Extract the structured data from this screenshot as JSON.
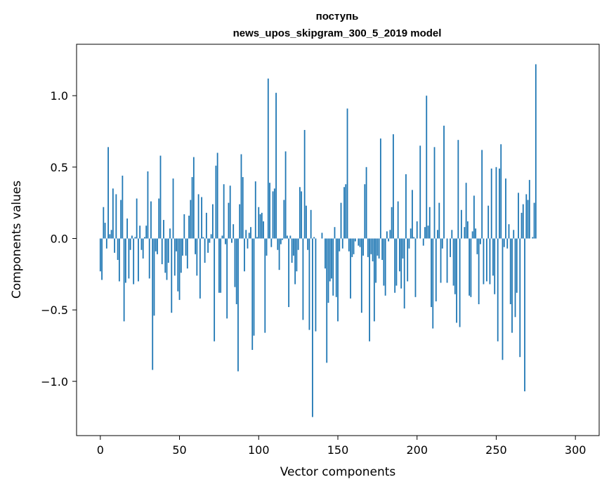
{
  "chart_data": {
    "type": "bar",
    "title_lines": [
      "поступь",
      "news_upos_skipgram_300_5_2019 model"
    ],
    "xlabel": "Vector components",
    "ylabel": "Components values",
    "xlim": [
      -15,
      315
    ],
    "ylim": [
      -1.38,
      1.36
    ],
    "xticks": [
      0,
      50,
      100,
      150,
      200,
      250,
      300
    ],
    "yticks": [
      -1.0,
      -0.5,
      0.0,
      0.5,
      1.0
    ],
    "ytick_labels": [
      "−1.0",
      "−0.5",
      "0.0",
      "0.5",
      "1.0"
    ],
    "bar_color": "#1f77b4",
    "grid": false,
    "legend": "none",
    "values": [
      -0.23,
      -0.29,
      0.22,
      0.11,
      -0.07,
      0.64,
      0.03,
      0.06,
      0.35,
      -0.1,
      0.31,
      -0.15,
      -0.3,
      0.27,
      0.44,
      -0.58,
      -0.31,
      0.14,
      -0.28,
      -0.08,
      0.02,
      -0.32,
      0.01,
      0.28,
      -0.3,
      0.09,
      -0.08,
      -0.14,
      0.01,
      0.09,
      0.47,
      -0.28,
      0.26,
      -0.92,
      -0.54,
      -0.09,
      -0.11,
      0.28,
      0.58,
      -0.18,
      0.13,
      -0.24,
      -0.29,
      -0.17,
      0.07,
      -0.52,
      0.42,
      -0.26,
      -0.09,
      -0.37,
      -0.43,
      -0.24,
      -0.12,
      0.17,
      -0.12,
      -0.21,
      0.16,
      0.27,
      0.43,
      0.57,
      -0.11,
      -0.26,
      0.31,
      -0.42,
      0.29,
      0.01,
      -0.17,
      0.18,
      -0.1,
      -0.03,
      0.03,
      0.24,
      -0.72,
      0.51,
      0.6,
      -0.38,
      -0.38,
      0.02,
      0.38,
      -0.04,
      -0.56,
      0.25,
      0.37,
      -0.03,
      0.1,
      -0.34,
      -0.46,
      -0.93,
      0.24,
      0.59,
      0.43,
      -0.23,
      0.06,
      -0.07,
      0.04,
      0.08,
      -0.78,
      -0.68,
      0.4,
      0.01,
      0.22,
      0.17,
      0.18,
      0.12,
      -0.66,
      -0.12,
      1.12,
      0.39,
      -0.06,
      0.33,
      0.35,
      1.02,
      -0.08,
      -0.22,
      -0.04,
      -0.01,
      0.27,
      0.61,
      0.02,
      -0.48,
      0.02,
      -0.17,
      -0.12,
      -0.32,
      -0.23,
      -0.08,
      0.36,
      0.33,
      -0.57,
      0.76,
      0.23,
      -0.08,
      -0.64,
      0.2,
      -1.25,
      0.01,
      -0.65,
      0.0,
      0.0,
      0.0,
      0.04,
      0.0,
      -0.21,
      -0.87,
      -0.45,
      -0.3,
      -0.28,
      -0.4,
      0.08,
      -0.41,
      -0.58,
      -0.09,
      0.25,
      -0.07,
      0.36,
      0.38,
      0.91,
      -0.09,
      -0.42,
      -0.13,
      -0.11,
      -0.02,
      0.0,
      -0.05,
      -0.06,
      -0.52,
      -0.12,
      0.38,
      0.5,
      -0.13,
      -0.72,
      -0.11,
      -0.16,
      -0.58,
      -0.31,
      -0.12,
      -0.14,
      0.7,
      -0.15,
      -0.33,
      -0.4,
      0.05,
      -0.02,
      0.06,
      0.22,
      0.73,
      -0.38,
      -0.33,
      0.26,
      -0.23,
      -0.35,
      -0.14,
      -0.49,
      0.45,
      -0.3,
      -0.07,
      0.07,
      0.34,
      0.01,
      -0.41,
      0.12,
      0.0,
      0.65,
      0.0,
      -0.05,
      0.08,
      1.0,
      0.09,
      0.22,
      -0.48,
      -0.63,
      0.64,
      -0.44,
      0.06,
      0.25,
      -0.31,
      -0.07,
      0.79,
      0.0,
      -0.31,
      0.0,
      -0.13,
      0.06,
      -0.33,
      -0.39,
      -0.59,
      0.69,
      -0.62,
      0.2,
      0.0,
      0.08,
      0.39,
      0.12,
      -0.4,
      -0.41,
      0.05,
      0.3,
      0.07,
      -0.11,
      -0.46,
      -0.04,
      0.62,
      -0.32,
      0.0,
      -0.3,
      0.23,
      -0.32,
      0.49,
      -0.26,
      -0.39,
      0.5,
      -0.72,
      0.49,
      0.66,
      -0.85,
      -0.06,
      0.42,
      -0.07,
      0.1,
      -0.46,
      -0.66,
      0.06,
      -0.55,
      -0.38,
      0.32,
      -0.83,
      0.18,
      0.24,
      -1.07,
      0.31,
      0.27,
      0.41,
      0.0,
      0.01,
      0.25,
      1.22,
      0.0,
      0.0,
      0.0,
      0.0,
      0.0,
      0.0,
      0.0,
      0.0,
      0.0,
      0.0,
      0.0,
      0.0,
      0.0,
      0.0,
      0.0,
      0.0,
      0.0,
      0.0,
      0.0,
      0.0,
      0.0,
      0.0,
      0.0,
      0.0
    ]
  }
}
